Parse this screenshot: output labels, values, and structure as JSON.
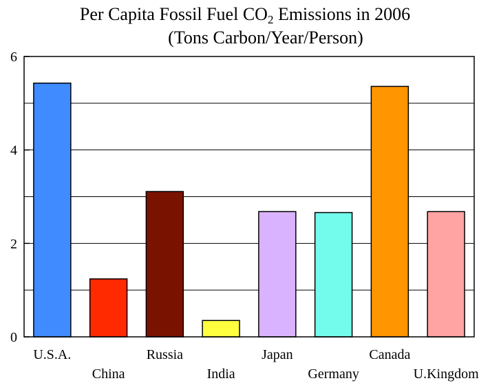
{
  "chart_data": {
    "type": "bar",
    "title_prefix": "Per Capita Fossil Fuel CO",
    "title_subscript": "2",
    "title_suffix": " Emissions in 2006",
    "subtitle": "(Tons Carbon/Year/Person)",
    "categories": [
      "U.S.A.",
      "China",
      "Russia",
      "India",
      "Japan",
      "Germany",
      "Canada",
      "U.Kingdom"
    ],
    "values": [
      5.43,
      1.24,
      3.11,
      0.35,
      2.68,
      2.66,
      5.36,
      2.68
    ],
    "colors": [
      "#3f8bff",
      "#ff2a00",
      "#7a1200",
      "#ffff40",
      "#d9b3ff",
      "#73fbec",
      "#ff9500",
      "#ffa3a3"
    ],
    "ylim": [
      0,
      6
    ],
    "yticks": [
      0,
      2,
      4,
      6
    ],
    "grid": true,
    "xlabel": "",
    "ylabel": ""
  }
}
